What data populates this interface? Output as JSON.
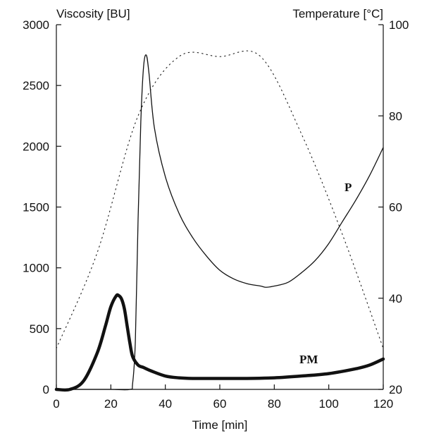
{
  "chart_data": {
    "type": "line",
    "xlabel": "Time [min]",
    "ylabel_left": "Viscosity [BU]",
    "ylabel_right": "Temperature [°C]",
    "xlim": [
      0,
      120
    ],
    "ylim_left": [
      0,
      3000
    ],
    "ylim_right": [
      20,
      100
    ],
    "x_ticks": [
      0,
      20,
      40,
      60,
      80,
      100,
      120
    ],
    "y_left_ticks": [
      0,
      500,
      1000,
      1500,
      2000,
      2500,
      3000
    ],
    "y_right_ticks": [
      20,
      40,
      60,
      80,
      100
    ],
    "grid": false,
    "series": [
      {
        "name": "P",
        "axis": "left",
        "style": "thin-solid",
        "x": [
          0,
          10,
          20,
          27,
          28,
          29,
          30,
          31,
          32,
          33,
          34,
          36,
          40,
          45,
          50,
          55,
          60,
          65,
          70,
          75,
          77,
          80,
          85,
          90,
          95,
          100,
          105,
          110,
          115,
          120
        ],
        "y": [
          0,
          0,
          0,
          0,
          50,
          400,
          1400,
          2200,
          2650,
          2750,
          2600,
          2150,
          1750,
          1450,
          1250,
          1100,
          980,
          910,
          870,
          850,
          840,
          850,
          880,
          960,
          1060,
          1200,
          1380,
          1560,
          1760,
          1990
        ]
      },
      {
        "name": "PM",
        "axis": "left",
        "style": "thick-solid",
        "x": [
          0,
          5,
          10,
          15,
          18,
          20,
          22,
          23,
          24,
          25,
          26,
          27,
          28,
          30,
          32,
          35,
          40,
          45,
          50,
          60,
          70,
          80,
          90,
          100,
          110,
          115,
          120
        ],
        "y": [
          0,
          0,
          70,
          300,
          520,
          680,
          770,
          770,
          740,
          660,
          520,
          380,
          270,
          200,
          180,
          150,
          110,
          95,
          90,
          90,
          90,
          95,
          110,
          130,
          170,
          200,
          250
        ]
      },
      {
        "name": "",
        "axis": "right",
        "style": "dotted",
        "x": [
          0,
          15,
          30,
          45,
          60,
          75,
          90,
          105,
          120
        ],
        "y": [
          29,
          50,
          80,
          93,
          93,
          93,
          76,
          54,
          29
        ]
      }
    ]
  }
}
